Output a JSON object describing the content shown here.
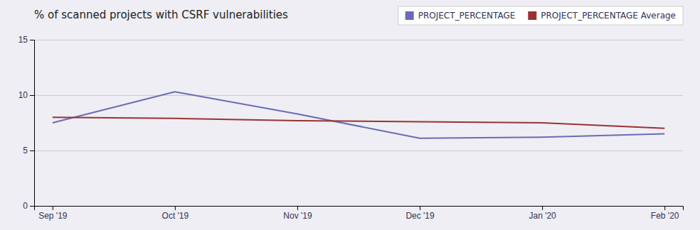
{
  "chart_data": {
    "type": "line",
    "title": "% of scanned projects with CSRF vulnerabilities",
    "categories": [
      "Sep '19",
      "Oct '19",
      "Nov '19",
      "Dec '19",
      "Jan '20",
      "Feb '20"
    ],
    "series": [
      {
        "name": "PROJECT_PERCENTAGE",
        "color": "#6B6BB5",
        "values": [
          7.5,
          10.3,
          8.3,
          6.1,
          6.2,
          6.5
        ]
      },
      {
        "name": "PROJECT_PERCENTAGE Average",
        "color": "#993333",
        "values": [
          8.0,
          7.9,
          7.7,
          7.6,
          7.5,
          7.0
        ]
      }
    ],
    "ylim": [
      0,
      15
    ],
    "yticks": [
      0,
      5,
      10,
      15
    ],
    "grid": true,
    "legend": "top-right"
  }
}
